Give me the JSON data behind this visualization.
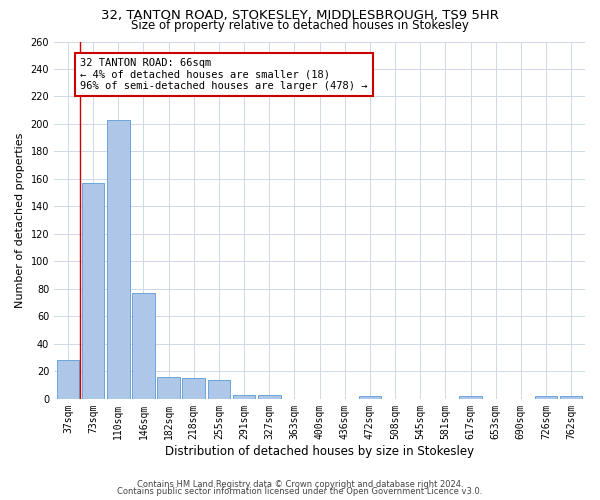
{
  "title": "32, TANTON ROAD, STOKESLEY, MIDDLESBROUGH, TS9 5HR",
  "subtitle": "Size of property relative to detached houses in Stokesley",
  "xlabel": "Distribution of detached houses by size in Stokesley",
  "ylabel": "Number of detached properties",
  "footer_line1": "Contains HM Land Registry data © Crown copyright and database right 2024.",
  "footer_line2": "Contains public sector information licensed under the Open Government Licence v3.0.",
  "bar_labels": [
    "37sqm",
    "73sqm",
    "110sqm",
    "146sqm",
    "182sqm",
    "218sqm",
    "255sqm",
    "291sqm",
    "327sqm",
    "363sqm",
    "400sqm",
    "436sqm",
    "472sqm",
    "508sqm",
    "545sqm",
    "581sqm",
    "617sqm",
    "653sqm",
    "690sqm",
    "726sqm",
    "762sqm"
  ],
  "bar_values": [
    28,
    157,
    203,
    77,
    16,
    15,
    14,
    3,
    3,
    0,
    0,
    0,
    2,
    0,
    0,
    0,
    2,
    0,
    0,
    2,
    2
  ],
  "bar_color": "#aec6e8",
  "bar_edgecolor": "#5a9bd4",
  "grid_color": "#d0d8e8",
  "annotation_text": "32 TANTON ROAD: 66sqm\n← 4% of detached houses are smaller (18)\n96% of semi-detached houses are larger (478) →",
  "annotation_box_color": "#ffffff",
  "annotation_box_edgecolor": "#cc0000",
  "red_line_x": 0.5,
  "ylim": [
    0,
    260
  ],
  "yticks": [
    0,
    20,
    40,
    60,
    80,
    100,
    120,
    140,
    160,
    180,
    200,
    220,
    240,
    260
  ],
  "background_color": "#ffffff",
  "title_fontsize": 9.5,
  "subtitle_fontsize": 8.5,
  "ylabel_fontsize": 8,
  "xlabel_fontsize": 8.5,
  "tick_fontsize": 7,
  "annotation_fontsize": 7.5,
  "footer_fontsize": 6
}
